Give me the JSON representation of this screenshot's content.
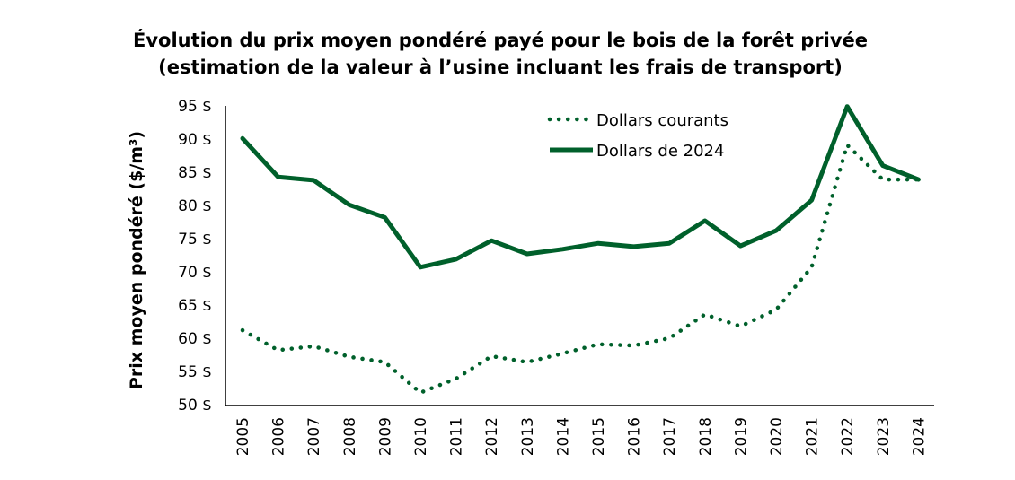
{
  "chart_data": {
    "type": "line",
    "title": "Évolution du prix moyen pondéré payé pour le bois de la forêt privée",
    "subtitle": "(estimation de la valeur à l’usine incluant les frais de transport)",
    "xlabel": "",
    "ylabel": "Prix moyen pondéré ($/m³)",
    "ylim": [
      50,
      95
    ],
    "ytick_values": [
      50,
      55,
      60,
      65,
      70,
      75,
      80,
      85,
      90,
      95
    ],
    "ytick_labels": [
      "50 $",
      "55 $",
      "60 $",
      "65 $",
      "70 $",
      "75 $",
      "80 $",
      "85 $",
      "90 $",
      "95 $"
    ],
    "grid": false,
    "legend_position": "top-right",
    "x": [
      "2005",
      "2006",
      "2007",
      "2008",
      "2009",
      "2010",
      "2011",
      "2012",
      "2013",
      "2014",
      "2015",
      "2016",
      "2017",
      "2018",
      "2019",
      "2020",
      "2021",
      "2022",
      "2023",
      "2024"
    ],
    "series": [
      {
        "name": "Dollars courants",
        "style": "dotted",
        "color": "#00602b",
        "values": [
          61.2,
          58.2,
          58.8,
          57.2,
          56.4,
          51.8,
          53.9,
          57.3,
          56.4,
          57.7,
          59.1,
          58.9,
          60.0,
          63.6,
          61.8,
          64.3,
          70.7,
          89.1,
          83.9,
          83.9
        ]
      },
      {
        "name": "Dollars de 2024",
        "style": "solid",
        "color": "#00602b",
        "values": [
          90.1,
          84.3,
          83.8,
          80.1,
          78.2,
          70.7,
          71.9,
          74.7,
          72.7,
          73.4,
          74.3,
          73.8,
          74.3,
          77.7,
          73.9,
          76.2,
          80.8,
          94.9,
          86.0,
          83.9
        ]
      }
    ]
  }
}
